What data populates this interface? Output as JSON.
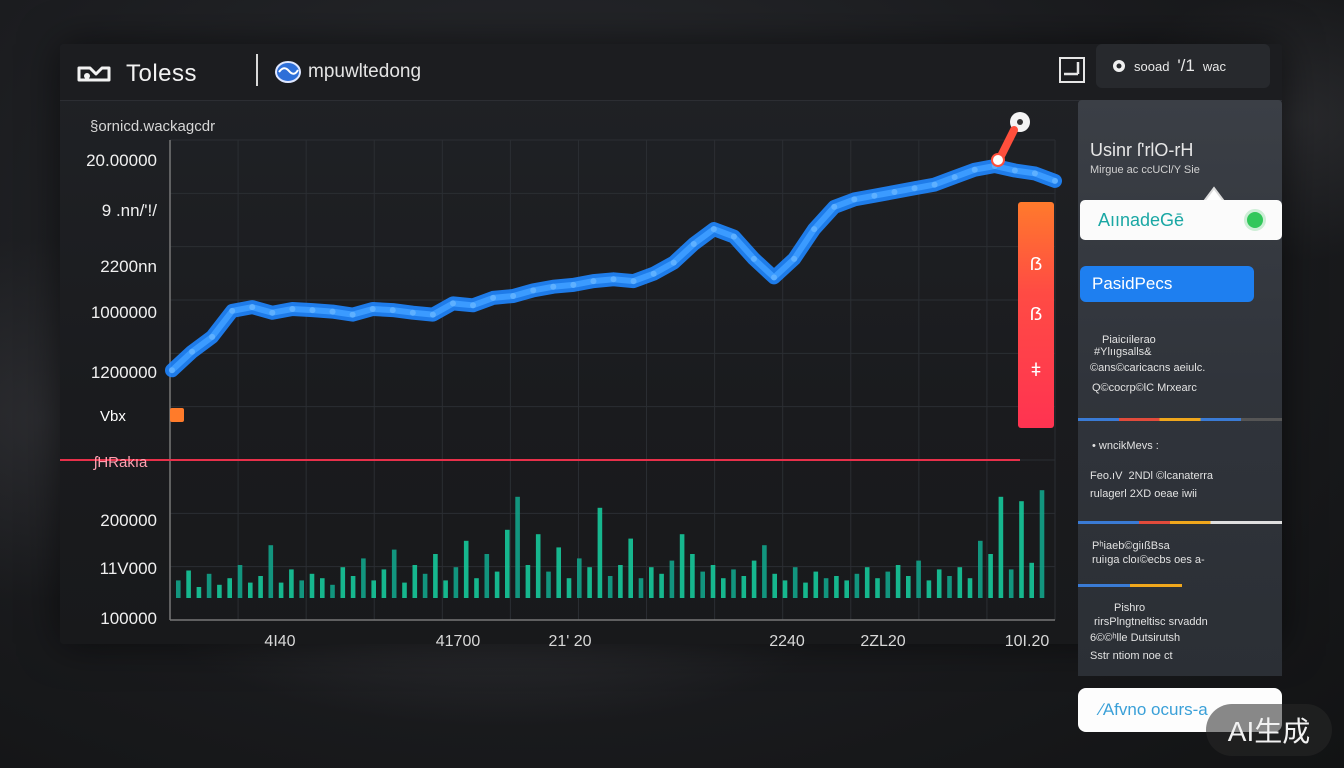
{
  "app": {
    "title": "Toless",
    "tab_label": "mpuwltedong"
  },
  "status": {
    "label": "sooad",
    "value": "'/1",
    "unit": "wac"
  },
  "chart_data": {
    "type": "line",
    "title": "",
    "subtitle": "§ornicd.wackagcdr",
    "y_tick_labels_upper": [
      "20.00000",
      "9 .nn/'!/",
      "2200nn",
      "1000000",
      "1200000"
    ],
    "y_tick_labels_lower": [
      "200000",
      "11V000",
      "100000"
    ],
    "x_tick_labels": [
      "4Ι40",
      "41700",
      "21' 20",
      "2240",
      "2ΖL20",
      "10Ι.20"
    ],
    "series": [
      {
        "color": "#1f86ff",
        "x": [
          0,
          20,
          40,
          60,
          80,
          100,
          120,
          140,
          160,
          180,
          200,
          220,
          240,
          260,
          280,
          300,
          320,
          340,
          360,
          380,
          400,
          420,
          440,
          460,
          480,
          500,
          520,
          540,
          560,
          580,
          600,
          620,
          640,
          660,
          680,
          700,
          720,
          740,
          760,
          780,
          800,
          820,
          840,
          860,
          880
        ],
        "values": [
          1180000,
          1230000,
          1270000,
          1340000,
          1350000,
          1335000,
          1345000,
          1342000,
          1338000,
          1330000,
          1345000,
          1342000,
          1335000,
          1330000,
          1360000,
          1355000,
          1375000,
          1380000,
          1395000,
          1405000,
          1410000,
          1420000,
          1425000,
          1420000,
          1440000,
          1470000,
          1520000,
          1560000,
          1540000,
          1480000,
          1430000,
          1480000,
          1560000,
          1620000,
          1640000,
          1650000,
          1660000,
          1670000,
          1680000,
          1700000,
          1720000,
          1730000,
          1718000,
          1710000,
          1690000
        ]
      }
    ],
    "volume": {
      "color": "#16c99b",
      "values": [
        16,
        25,
        10,
        22,
        12,
        18,
        30,
        14,
        20,
        48,
        14,
        26,
        16,
        22,
        18,
        12,
        28,
        20,
        36,
        16,
        26,
        44,
        14,
        30,
        22,
        40,
        16,
        28,
        52,
        18,
        40,
        24,
        62,
        92,
        30,
        58,
        24,
        46,
        18,
        36,
        28,
        82,
        20,
        30,
        54,
        18,
        28,
        22,
        34,
        58,
        40,
        24,
        30,
        18,
        26,
        20,
        34,
        48,
        22,
        16,
        28,
        14,
        24,
        18,
        20,
        16,
        22,
        28,
        18,
        24,
        30,
        20,
        34,
        16,
        26,
        20,
        28,
        18,
        52,
        40,
        92,
        26,
        88,
        32,
        98
      ]
    },
    "threshold_label": "ʃHRakıa",
    "marker_label": "Vbx"
  },
  "rightbar": {
    "glyphs": [
      "ẞ",
      "ẞ",
      "ǂ"
    ]
  },
  "sidepanel": {
    "title": "Usinr ſ'rlO-rH",
    "subtitle": "Mirgue ac ccUCl/Y Sie",
    "card_label": "AıınadeGē",
    "primary_button": "PasidPecs",
    "section1": [
      "Piaicıilerao",
      "#Ylııgsalls&",
      "©ans©caricacns aeiulc.",
      "Q©cocrp©lC Mrxearc"
    ],
    "section2": [
      "• wncikMevs :",
      "Feo.ıV  2NDl ©lcanaterra",
      "rulagerl 2XD oeae iwii"
    ],
    "section3": [
      "Pʰiaeb©giıßBsa",
      "ruiıga cloı©ecbs oes a- "
    ],
    "section4": [
      "Pishro",
      "rirsPlngtneltisc srvaddn",
      "6©©ʰlle Dutsirutsh",
      "Sstr ntiom noe ct"
    ],
    "footer_button": "∕Afvno ocurs-a"
  },
  "watermark": "AI生成"
}
